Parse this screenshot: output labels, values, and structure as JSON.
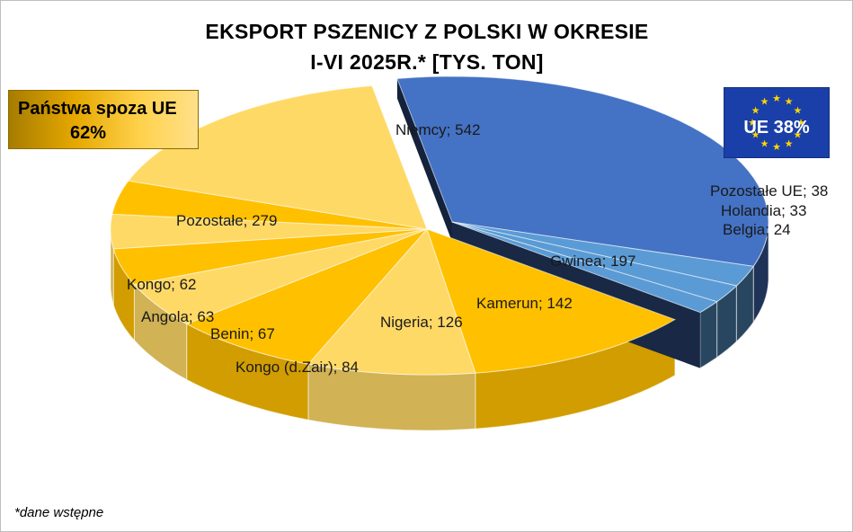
{
  "title_line1": "EKSPORT PSZENICY Z POLSKI W OKRESIE",
  "title_line2": "I-VI 2025R.* [TYS. TON]",
  "non_eu": {
    "label": "Państwa spoza UE",
    "percent": "62%"
  },
  "eu": {
    "label": "UE 38%",
    "flag_color": "#1a3fa8",
    "star_color": "#ffd700"
  },
  "footnote": "*dane wstępne",
  "colors": {
    "eu_dark": "#4472c4",
    "eu_light": "#5b9bd5",
    "noneu_dark": "#ffc000",
    "noneu_light": "#ffd966"
  },
  "chart_data": {
    "type": "pie",
    "style": "3d-exploded",
    "unit": "tys. ton",
    "slices": [
      {
        "name": "Niemcy",
        "value": 542,
        "group": "UE"
      },
      {
        "name": "Pozostałe UE",
        "value": 38,
        "group": "UE"
      },
      {
        "name": "Holandia",
        "value": 33,
        "group": "UE"
      },
      {
        "name": "Belgia",
        "value": 24,
        "group": "UE"
      },
      {
        "name": "Gwinea",
        "value": 197,
        "group": "non-EU"
      },
      {
        "name": "Kamerun",
        "value": 142,
        "group": "non-EU"
      },
      {
        "name": "Nigeria",
        "value": 126,
        "group": "non-EU"
      },
      {
        "name": "Kongo (d.Zair)",
        "value": 84,
        "group": "non-EU"
      },
      {
        "name": "Benin",
        "value": 67,
        "group": "non-EU"
      },
      {
        "name": "Angola",
        "value": 63,
        "group": "non-EU"
      },
      {
        "name": "Kongo",
        "value": 62,
        "group": "non-EU"
      },
      {
        "name": "Pozostałe",
        "value": 279,
        "group": "non-EU"
      }
    ],
    "labels": [
      {
        "text": "Niemcy; 542"
      },
      {
        "text": "Pozostałe UE; 38"
      },
      {
        "text": "Holandia; 33"
      },
      {
        "text": "Belgia; 24"
      },
      {
        "text": "Gwinea; 197"
      },
      {
        "text": "Kamerun; 142"
      },
      {
        "text": "Nigeria; 126"
      },
      {
        "text": "Kongo (d.Zair); 84"
      },
      {
        "text": "Benin; 67"
      },
      {
        "text": "Angola; 63"
      },
      {
        "text": "Kongo; 62"
      },
      {
        "text": "Pozostałe; 279"
      }
    ]
  }
}
